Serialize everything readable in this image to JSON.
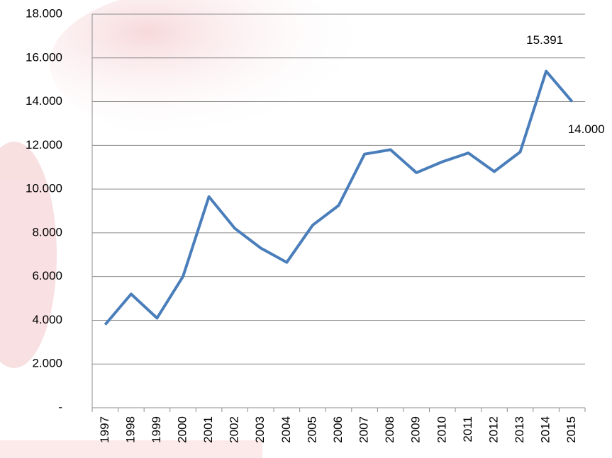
{
  "chart_data": {
    "type": "line",
    "categories": [
      "1997",
      "1998",
      "1999",
      "2000",
      "2001",
      "2002",
      "2003",
      "2004",
      "2005",
      "2006",
      "2007",
      "2008",
      "2009",
      "2010",
      "2011",
      "2012",
      "2013",
      "2014",
      "2015"
    ],
    "series": [
      {
        "color": "#4a7ebb",
        "values": [
          3800,
          5200,
          4100,
          6000,
          9650,
          8200,
          7300,
          6650,
          8350,
          9250,
          11600,
          11800,
          10750,
          11250,
          11650,
          10800,
          11700,
          15391,
          14000
        ],
        "value_labels": [
          null,
          null,
          null,
          null,
          null,
          null,
          null,
          null,
          null,
          null,
          null,
          null,
          null,
          null,
          null,
          null,
          null,
          "15.391",
          "14.000"
        ]
      }
    ],
    "ylim": [
      0,
      18000
    ],
    "yticks": [
      {
        "value": 0,
        "label": "-"
      },
      {
        "value": 2000,
        "label": "2.000"
      },
      {
        "value": 4000,
        "label": "4.000"
      },
      {
        "value": 6000,
        "label": "6.000"
      },
      {
        "value": 8000,
        "label": "8.000"
      },
      {
        "value": 10000,
        "label": "10.000"
      },
      {
        "value": 12000,
        "label": "12.000"
      },
      {
        "value": 14000,
        "label": "14.000"
      },
      {
        "value": 16000,
        "label": "16.000"
      },
      {
        "value": 18000,
        "label": "18.000"
      }
    ],
    "grid": true
  }
}
